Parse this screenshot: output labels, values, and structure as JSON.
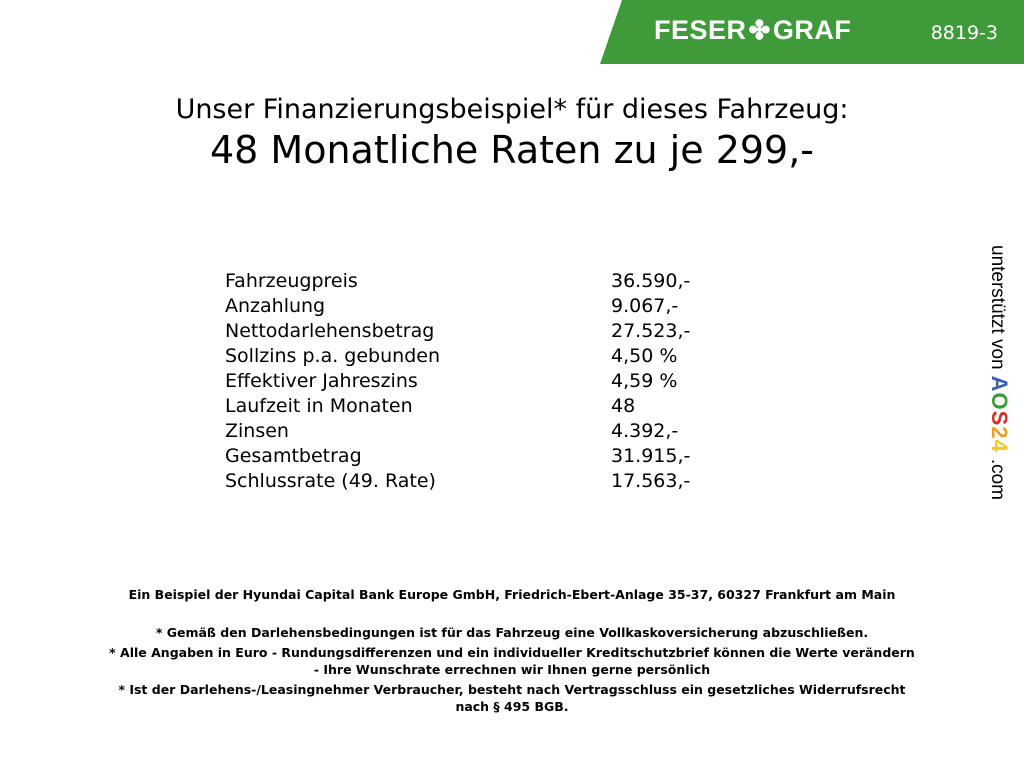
{
  "header": {
    "logo_left": "FESER",
    "logo_right": "GRAF",
    "logo_icon": "clover-icon",
    "code": "8819-3",
    "brand_color": "#3f9a3a"
  },
  "title": {
    "line1": "Unser Finanzierungsbeispiel* für dieses Fahrzeug:",
    "line2": "48 Monatliche Raten zu je 299,-"
  },
  "rows": [
    {
      "label": "Fahrzeugpreis",
      "value": "36.590,-"
    },
    {
      "label": "Anzahlung",
      "value": "9.067,-"
    },
    {
      "label": "Nettodarlehensbetrag",
      "value": "27.523,-"
    },
    {
      "label": "Sollzins p.a. gebunden",
      "value": "4,50 %"
    },
    {
      "label": "Effektiver Jahreszins",
      "value": "4,59 %"
    },
    {
      "label": "Laufzeit in Monaten",
      "value": "48"
    },
    {
      "label": "Zinsen",
      "value": "4.392,-"
    },
    {
      "label": "Gesamtbetrag",
      "value": "31.915,-"
    },
    {
      "label": "Schlussrate (49. Rate)",
      "value": "17.563,-"
    }
  ],
  "side": {
    "prefix": "unterstützt von",
    "logo": [
      "A",
      "O",
      "S",
      "2",
      "4"
    ],
    "logo_colors": [
      "#3b5fae",
      "#3f9a3a",
      "#d0312d",
      "#e8a020",
      "#f2c81e"
    ],
    "suffix": ".com"
  },
  "footer": {
    "bank": "Ein Beispiel der Hyundai Capital Bank Europe GmbH, Friedrich-Ebert-Anlage 35-37, 60327 Frankfurt am Main",
    "note1": "* Gemäß den Darlehensbedingungen ist für das Fahrzeug eine Vollkaskoversicherung abzuschließen.",
    "note2a": "* Alle Angaben in Euro - Rundungsdifferenzen und ein individueller Kreditschutzbrief können die Werte verändern",
    "note2b": "- Ihre Wunschrate errechnen wir Ihnen gerne persönlich",
    "note3a": "* Ist der Darlehens-/Leasingnehmer Verbraucher, besteht nach Vertragsschluss ein gesetzliches Widerrufsrecht",
    "note3b": "nach § 495 BGB."
  }
}
